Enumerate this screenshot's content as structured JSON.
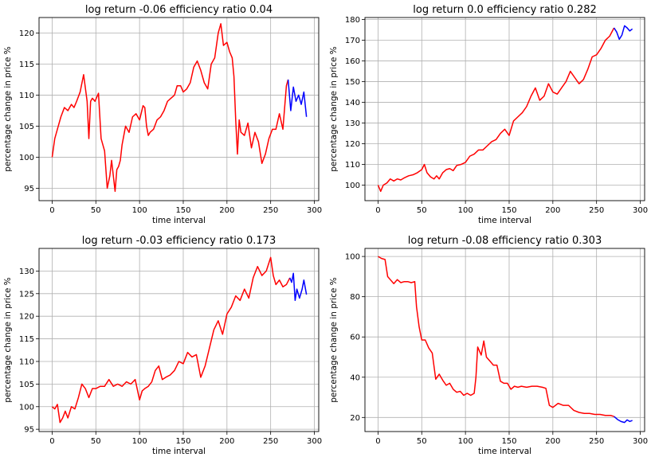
{
  "chart_data": [
    {
      "type": "line",
      "title": "log return -0.06 efficiency ratio 0.04",
      "xlabel": "time interval",
      "ylabel": "percentage change in price %",
      "xlim": [
        -15,
        305
      ],
      "ylim": [
        93,
        122.5
      ],
      "xticks": [
        0,
        50,
        100,
        150,
        200,
        250,
        300
      ],
      "yticks": [
        95,
        100,
        105,
        110,
        115,
        120
      ],
      "grid": true,
      "series": [
        {
          "color": "#ff0000",
          "x": [
            0,
            3,
            6,
            10,
            14,
            18,
            22,
            25,
            28,
            32,
            36,
            40,
            42,
            44,
            46,
            49,
            53,
            56,
            58,
            60,
            63,
            66,
            68,
            70,
            72,
            74,
            76,
            78,
            80,
            84,
            88,
            92,
            96,
            100,
            104,
            106,
            108,
            110,
            112,
            116,
            120,
            124,
            128,
            132,
            136,
            140,
            143,
            147,
            150,
            154,
            158,
            162,
            166,
            170,
            174,
            178,
            182,
            186,
            190,
            193,
            196,
            200,
            203,
            206,
            208,
            210,
            212,
            214,
            216,
            220,
            224,
            228,
            232,
            236,
            240,
            244,
            248,
            252,
            256,
            260,
            264,
            268,
            270
          ],
          "y": [
            100,
            103,
            104.5,
            106.5,
            108,
            107.5,
            108.5,
            108,
            109,
            110.5,
            113.3,
            109,
            103,
            109,
            109.5,
            109,
            110.3,
            103,
            102,
            101,
            95,
            97,
            99.5,
            97,
            94.5,
            98,
            98.5,
            99.5,
            102,
            105,
            104,
            106.5,
            107,
            106,
            108.3,
            108,
            105,
            103.5,
            104,
            104.5,
            106,
            106.5,
            107.5,
            109,
            109.5,
            110,
            111.5,
            111.5,
            110.5,
            111,
            112,
            114.5,
            115.5,
            114,
            112,
            111,
            115,
            116,
            120,
            121.5,
            118,
            118.5,
            117,
            116,
            113,
            106,
            100.5,
            106,
            104,
            103.5,
            105.5,
            101.5,
            104,
            102.5,
            99,
            100.5,
            103,
            104.5,
            104.5,
            107,
            104.5,
            111.5,
            112.5
          ]
        },
        {
          "color": "#0000ff",
          "x": [
            270,
            273,
            276,
            279,
            282,
            285,
            288,
            291
          ],
          "y": [
            112.5,
            107.5,
            111.3,
            109,
            110,
            108.5,
            110.5,
            106.5
          ]
        }
      ]
    },
    {
      "type": "line",
      "title": "log return 0.0 efficiency ratio 0.282",
      "xlabel": "time interval",
      "ylabel": "percentage change in price %",
      "xlim": [
        -15,
        305
      ],
      "ylim": [
        92.5,
        181
      ],
      "xticks": [
        0,
        50,
        100,
        150,
        200,
        250,
        300
      ],
      "yticks": [
        100,
        110,
        120,
        130,
        140,
        150,
        160,
        170,
        180
      ],
      "grid": true,
      "series": [
        {
          "color": "#ff0000",
          "x": [
            0,
            3,
            6,
            10,
            14,
            18,
            22,
            26,
            30,
            35,
            40,
            45,
            50,
            53,
            56,
            60,
            64,
            67,
            70,
            74,
            78,
            82,
            86,
            90,
            95,
            100,
            105,
            110,
            115,
            120,
            125,
            130,
            135,
            140,
            145,
            150,
            155,
            160,
            165,
            170,
            175,
            180,
            185,
            190,
            195,
            200,
            205,
            210,
            215,
            220,
            225,
            230,
            235,
            240,
            245,
            250,
            255,
            260,
            265,
            270
          ],
          "y": [
            100,
            97,
            100,
            101,
            103,
            102,
            103,
            102.5,
            103.5,
            104.5,
            105,
            106,
            107.5,
            110,
            106,
            104,
            103,
            104.5,
            103,
            106,
            107.5,
            108,
            107,
            109.5,
            110,
            111,
            114,
            115,
            117,
            117,
            119,
            121,
            122,
            125,
            127,
            124,
            131,
            133,
            135,
            138,
            143,
            147,
            141,
            143,
            149,
            145,
            144,
            147,
            150,
            155,
            152,
            149,
            151,
            156,
            162,
            163,
            166,
            170,
            172,
            176
          ]
        },
        {
          "color": "#0000ff",
          "x": [
            270,
            273,
            276,
            279,
            282,
            285,
            288,
            291
          ],
          "y": [
            176,
            174,
            170.5,
            172.5,
            177,
            176,
            174.5,
            175.5
          ]
        }
      ]
    },
    {
      "type": "line",
      "title": "log return -0.03 efficiency ratio 0.173",
      "xlabel": "time interval",
      "ylabel": "percentage change in price %",
      "xlim": [
        -15,
        305
      ],
      "ylim": [
        94.5,
        135
      ],
      "xticks": [
        0,
        50,
        100,
        150,
        200,
        250,
        300
      ],
      "yticks": [
        95,
        100,
        105,
        110,
        115,
        120,
        125,
        130
      ],
      "grid": true,
      "series": [
        {
          "color": "#ff0000",
          "x": [
            0,
            3,
            6,
            9,
            12,
            15,
            18,
            22,
            26,
            30,
            34,
            38,
            42,
            46,
            50,
            55,
            60,
            65,
            70,
            75,
            80,
            85,
            90,
            95,
            100,
            103,
            106,
            110,
            114,
            118,
            122,
            126,
            130,
            135,
            140,
            145,
            150,
            155,
            160,
            165,
            170,
            175,
            180,
            185,
            190,
            195,
            200,
            205,
            210,
            215,
            220,
            225,
            230,
            235,
            240,
            245,
            250,
            253,
            256,
            260,
            264,
            268,
            272
          ],
          "y": [
            100,
            99.5,
            100.5,
            96.5,
            97.5,
            99,
            97.5,
            100,
            99.5,
            102,
            105,
            104,
            102,
            104,
            104,
            104.5,
            104.5,
            106,
            104.5,
            105,
            104.5,
            105.5,
            105,
            106,
            101.5,
            103.5,
            104,
            104.5,
            105.5,
            108,
            109,
            106,
            106.5,
            107,
            108,
            110,
            109.5,
            112,
            111,
            111.5,
            106.5,
            109,
            113,
            117,
            119,
            116,
            120.5,
            122,
            124.5,
            123.5,
            126,
            124,
            128.5,
            131,
            129,
            130,
            133,
            129,
            127,
            128,
            126.5,
            127,
            128.5
          ]
        },
        {
          "color": "#0000ff",
          "x": [
            272,
            274,
            276,
            278,
            280,
            283,
            286,
            288,
            291
          ],
          "y": [
            128.5,
            127.5,
            129.5,
            123.5,
            126,
            124,
            126,
            128,
            124.8
          ]
        }
      ]
    },
    {
      "type": "line",
      "title": "log return -0.08 efficiency ratio 0.303",
      "xlabel": "time interval",
      "ylabel": "percentage change in price %",
      "xlim": [
        -15,
        305
      ],
      "ylim": [
        13,
        104
      ],
      "xticks": [
        0,
        50,
        100,
        150,
        200,
        250,
        300
      ],
      "yticks": [
        20,
        40,
        60,
        80,
        100
      ],
      "grid": true,
      "series": [
        {
          "color": "#ff0000",
          "x": [
            0,
            4,
            8,
            11,
            14,
            18,
            22,
            26,
            30,
            34,
            38,
            42,
            44,
            47,
            50,
            54,
            58,
            62,
            66,
            70,
            74,
            78,
            82,
            86,
            90,
            94,
            98,
            102,
            106,
            110,
            112,
            114,
            118,
            121,
            124,
            128,
            132,
            136,
            140,
            144,
            148,
            152,
            156,
            160,
            164,
            170,
            176,
            182,
            188,
            192,
            196,
            200,
            206,
            212,
            218,
            224,
            230,
            236,
            242,
            248,
            254,
            260,
            266,
            270
          ],
          "y": [
            100,
            99,
            98.5,
            90,
            88.5,
            86.5,
            88.5,
            87,
            87.5,
            87.5,
            87,
            87.5,
            75,
            65,
            58.5,
            58.5,
            54.5,
            52,
            39,
            41.5,
            38.5,
            36,
            37,
            34,
            32.5,
            33,
            31,
            32,
            31,
            32,
            40,
            55,
            51,
            58,
            50,
            48,
            46,
            46,
            38,
            37,
            37,
            34,
            35.5,
            35,
            35.5,
            35,
            35.5,
            35.5,
            35,
            34.5,
            26,
            25,
            27,
            26,
            26,
            23.5,
            22.5,
            22,
            22,
            21.5,
            21.5,
            21,
            21,
            20.5
          ]
        },
        {
          "color": "#0000ff",
          "x": [
            270,
            274,
            278,
            282,
            285,
            288,
            291
          ],
          "y": [
            20.5,
            19,
            18,
            17.5,
            18.8,
            18,
            18.5
          ]
        }
      ]
    }
  ]
}
